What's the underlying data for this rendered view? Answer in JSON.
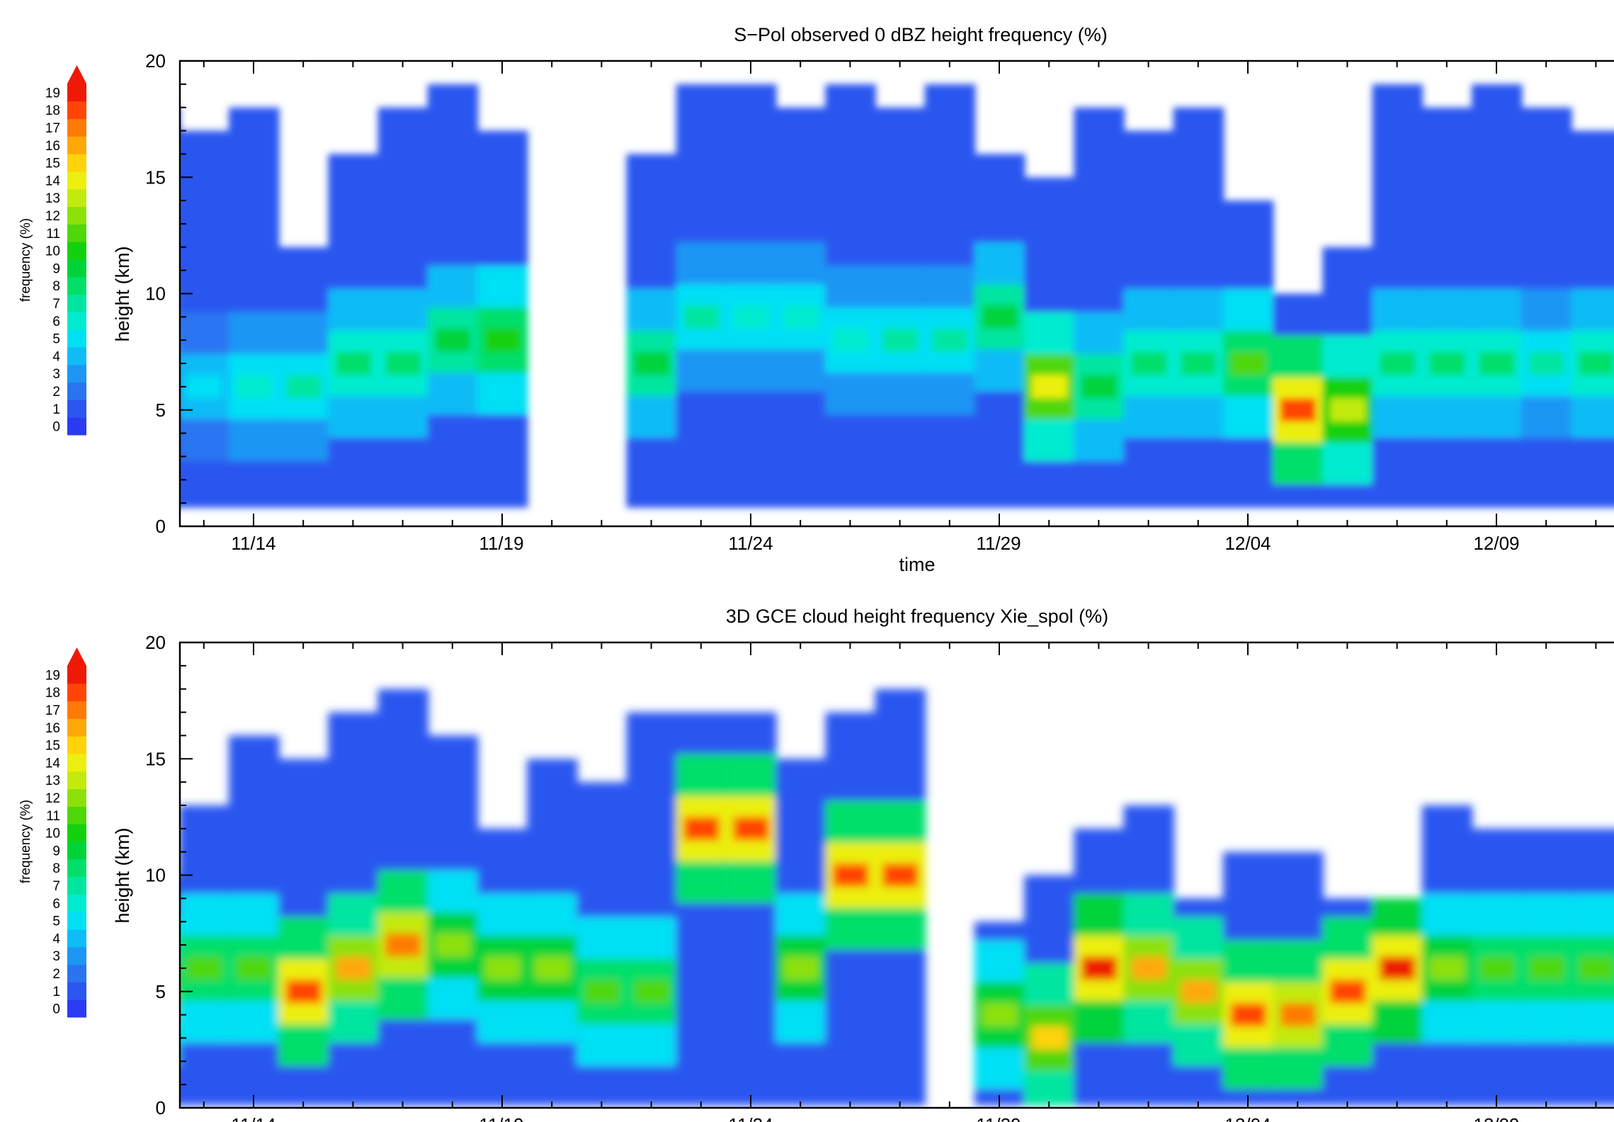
{
  "chart_data": [
    {
      "type": "heatmap",
      "title": "S−Pol observed 0 dBZ height frequency (%)",
      "xlabel": "time",
      "ylabel": "height (km)",
      "ylim": [
        0,
        20
      ],
      "yticks": [
        "0",
        "5",
        "10",
        "15",
        "20"
      ],
      "xticks": [
        "11/14",
        "11/19",
        "11/24",
        "11/29",
        "12/04",
        "12/09"
      ],
      "colorbar": {
        "label": "frequency (%)",
        "ticks": [
          "0",
          "1",
          "2",
          "3",
          "4",
          "5",
          "6",
          "7",
          "8",
          "9",
          "10",
          "11",
          "12",
          "13",
          "14",
          "15",
          "16",
          "17",
          "18",
          "19"
        ],
        "colors": [
          "#2a3cf2",
          "#2b56f0",
          "#2a74f2",
          "#1d96f5",
          "#10bcf6",
          "#00e0f5",
          "#00ecd0",
          "#00e6a0",
          "#00df6a",
          "#00d33a",
          "#14d10e",
          "#4fd70a",
          "#8ce10a",
          "#c3ea0e",
          "#ecef10",
          "#ffd20a",
          "#ffa808",
          "#ff7a06",
          "#ff4506",
          "#ee1a06"
        ]
      },
      "x": [
        "11/12",
        "11/13",
        "11/14",
        "11/15",
        "11/16",
        "11/17",
        "11/18",
        "11/19",
        "11/20",
        "11/21",
        "11/22",
        "11/23",
        "11/24",
        "11/25",
        "11/26",
        "11/27",
        "11/28",
        "11/29",
        "11/30",
        "12/01",
        "12/02",
        "12/03",
        "12/04",
        "12/05",
        "12/06",
        "12/07",
        "12/08",
        "12/09",
        "12/10",
        "12/11",
        "12/12"
      ],
      "series": [
        {
          "values": [
            18,
            17,
            18,
            12,
            16,
            18,
            19,
            17,
            0,
            0,
            16,
            19,
            19,
            18,
            19,
            18,
            19,
            16,
            15,
            18,
            17,
            18,
            14,
            10,
            12,
            19,
            18,
            19,
            18,
            17,
            19
          ]
        },
        {
          "values": [
            7,
            6,
            6,
            6,
            7,
            7,
            8,
            8,
            0,
            0,
            7,
            9,
            9,
            9,
            8,
            8,
            8,
            9,
            6,
            6,
            7,
            7,
            7,
            5,
            5,
            7,
            7,
            7,
            7,
            7,
            7
          ]
        },
        {
          "values": [
            4,
            5,
            6,
            7,
            8,
            8,
            9,
            10,
            0,
            0,
            9,
            7,
            6,
            6,
            6,
            7,
            7,
            9,
            14,
            9,
            8,
            8,
            11,
            18,
            13,
            8,
            8,
            8,
            7,
            8,
            8
          ]
        }
      ]
    },
    {
      "type": "heatmap",
      "title": "3D GCE cloud height frequency Xie_spol (%)",
      "xlabel": "time",
      "ylabel": "height (km)",
      "ylim": [
        0,
        20
      ],
      "yticks": [
        "0",
        "5",
        "10",
        "15",
        "20"
      ],
      "xticks": [
        "11/14",
        "11/19",
        "11/24",
        "11/29",
        "12/04",
        "12/09"
      ],
      "colorbar": {
        "label": "frequency (%)",
        "ticks": [
          "0",
          "1",
          "2",
          "3",
          "4",
          "5",
          "6",
          "7",
          "8",
          "9",
          "10",
          "11",
          "12",
          "13",
          "14",
          "15",
          "16",
          "17",
          "18",
          "19"
        ],
        "colors": [
          "#2a3cf2",
          "#2b56f0",
          "#2a74f2",
          "#1d96f5",
          "#10bcf6",
          "#00e0f5",
          "#00ecd0",
          "#00e6a0",
          "#00df6a",
          "#00d33a",
          "#14d10e",
          "#4fd70a",
          "#8ce10a",
          "#c3ea0e",
          "#ecef10",
          "#ffd20a",
          "#ffa808",
          "#ff7a06",
          "#ff4506",
          "#ee1a06"
        ]
      },
      "x": [
        "11/12",
        "11/13",
        "11/14",
        "11/15",
        "11/16",
        "11/17",
        "11/18",
        "11/19",
        "11/20",
        "11/21",
        "11/22",
        "11/23",
        "11/24",
        "11/25",
        "11/26",
        "11/27",
        "11/28",
        "11/29",
        "11/30",
        "12/01",
        "12/02",
        "12/03",
        "12/04",
        "12/05",
        "12/06",
        "12/07",
        "12/08",
        "12/09",
        "12/10",
        "12/11",
        "12/12"
      ],
      "series": [
        {
          "values": [
            10,
            13,
            16,
            15,
            17,
            18,
            16,
            12,
            15,
            14,
            17,
            17,
            17,
            15,
            17,
            18,
            0,
            8,
            10,
            12,
            13,
            9,
            11,
            11,
            9,
            9,
            13,
            12,
            12,
            12,
            12
          ]
        },
        {
          "values": [
            5,
            6,
            6,
            5,
            6,
            7,
            7,
            6,
            6,
            5,
            5,
            12,
            12,
            6,
            10,
            10,
            10,
            4,
            3,
            6,
            6,
            5,
            4,
            4,
            5,
            6,
            6,
            6,
            6,
            6,
            6
          ]
        },
        {
          "values": [
            14,
            11,
            11,
            18,
            16,
            17,
            12,
            12,
            12,
            11,
            11,
            18,
            18,
            12,
            18,
            18,
            18,
            12,
            15,
            19,
            16,
            16,
            18,
            17,
            18,
            19,
            12,
            11,
            11,
            11,
            11
          ]
        }
      ]
    }
  ]
}
